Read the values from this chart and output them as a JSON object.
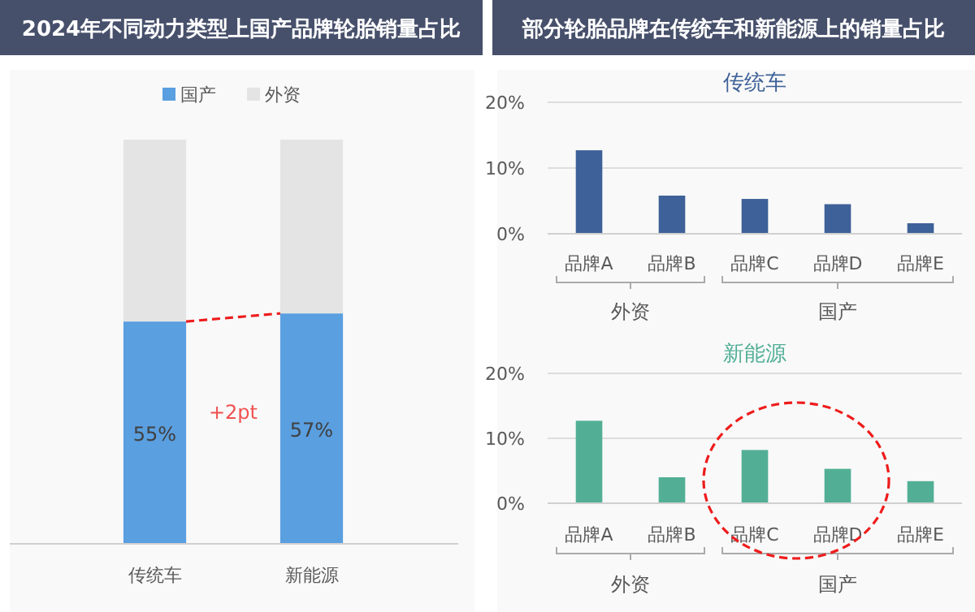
{
  "chart_data": [
    {
      "type": "bar",
      "title": "2024年不同动力类型上国产品牌轮胎销量占比",
      "categories": [
        "传统车",
        "新能源"
      ],
      "stacked": true,
      "ylim": [
        0,
        100
      ],
      "tick_labels": "x",
      "grid": false,
      "legend": "top",
      "annotations": [
        "+2pt"
      ],
      "series": [
        {
          "name": "国产",
          "color": "#5a9fe0",
          "values": [
            55,
            57
          ],
          "value_labels": [
            "55%",
            "57%"
          ]
        },
        {
          "name": "外资",
          "color": "#e4e4e4",
          "values": [
            45,
            43
          ]
        }
      ]
    },
    {
      "type": "bar",
      "title": "部分轮胎品牌在传统车和新能源上的销量占比",
      "subtitle": "传统车",
      "categories": [
        "品牌A",
        "品牌B",
        "品牌C",
        "品牌D",
        "品牌E"
      ],
      "ylim": [
        0,
        20
      ],
      "yticks": [
        {
          "value": 0,
          "label": "0%"
        },
        {
          "value": 10,
          "label": "10%"
        },
        {
          "value": 20,
          "label": "20%"
        }
      ],
      "grid": "y",
      "annotations": [
        "外资",
        "国产"
      ],
      "series": [
        {
          "color": "#3d6198",
          "values": [
            12.7,
            5.8,
            5.3,
            4.5,
            1.6
          ]
        }
      ]
    },
    {
      "type": "bar",
      "title": "新能源",
      "categories": [
        "品牌A",
        "品牌B",
        "品牌C",
        "品牌D",
        "品牌E"
      ],
      "ylim": [
        0,
        20
      ],
      "yticks": [
        {
          "value": 0,
          "label": "0%"
        },
        {
          "value": 10,
          "label": "10%"
        },
        {
          "value": 20,
          "label": "20%"
        }
      ],
      "grid": "y",
      "annotations": [
        "外资",
        "国产"
      ],
      "series": [
        {
          "color": "#52af95",
          "values": [
            12.7,
            4.0,
            8.2,
            5.3,
            3.4
          ]
        }
      ]
    }
  ]
}
